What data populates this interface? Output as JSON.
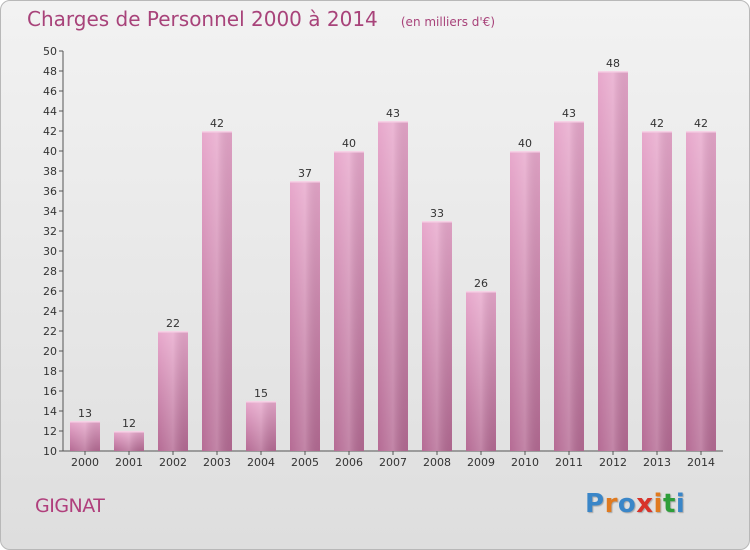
{
  "header": {
    "title": "Charges de Personnel 2000 à 2014",
    "subtitle": "(en milliers d'€)"
  },
  "footer": {
    "commune": "GIGNAT",
    "logo_text": "Proxiti",
    "logo_colors": [
      "#3a86c8",
      "#e07a1f",
      "#3a86c8",
      "#d8322a",
      "#e07a1f",
      "#2e9e3a",
      "#3a86c8"
    ]
  },
  "colors": {
    "bar_light": "#e8a8cc",
    "bar_dark": "#b56b94",
    "accent": "#a8437a"
  },
  "chart_data": {
    "type": "bar",
    "title": "Charges de Personnel 2000 à 2014",
    "subtitle": "(en milliers d'€)",
    "xlabel": "",
    "ylabel": "",
    "categories": [
      "2000",
      "2001",
      "2002",
      "2003",
      "2004",
      "2005",
      "2006",
      "2007",
      "2008",
      "2009",
      "2010",
      "2011",
      "2012",
      "2013",
      "2014"
    ],
    "values": [
      13,
      12,
      22,
      42,
      15,
      37,
      40,
      43,
      33,
      26,
      40,
      43,
      48,
      42,
      42
    ],
    "ylim": [
      10,
      50
    ],
    "yticks": [
      10,
      12,
      14,
      16,
      18,
      20,
      22,
      24,
      26,
      28,
      30,
      32,
      34,
      36,
      38,
      40,
      42,
      44,
      46,
      48,
      50
    ],
    "grid": false,
    "legend": "none"
  }
}
